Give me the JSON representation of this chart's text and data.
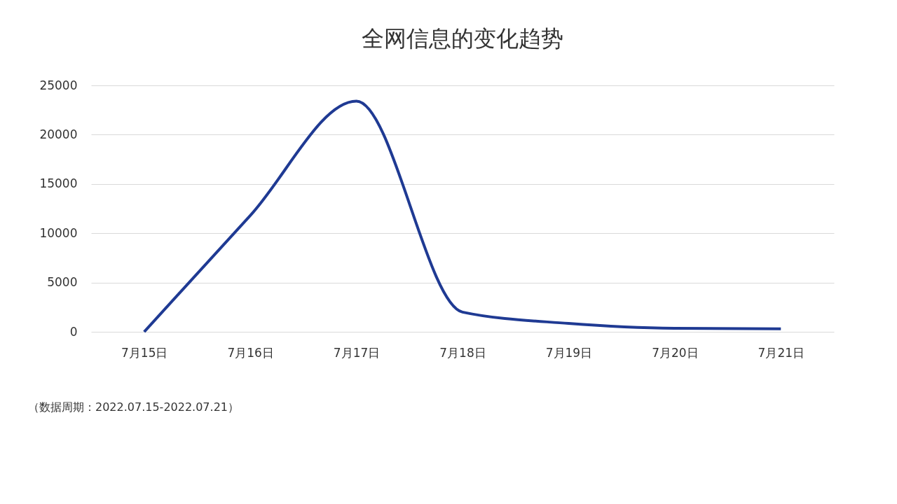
{
  "chart_data": {
    "type": "line",
    "title": "全网信息的变化趋势",
    "categories": [
      "7月15日",
      "7月16日",
      "7月17日",
      "7月18日",
      "7月19日",
      "7月20日",
      "7月21日"
    ],
    "series": [
      {
        "color": "#1f3a93",
        "values": [
          0,
          11800,
          23400,
          2000,
          850,
          350,
          300
        ]
      }
    ],
    "ylim": [
      0,
      25000
    ],
    "yticks": [
      0,
      5000,
      10000,
      15000,
      20000,
      25000
    ],
    "grid": "y",
    "legend": false,
    "marker": "none",
    "line_style": "solid",
    "annotations": [
      "（数据周期：2022.07.15-2022.07.21）"
    ]
  }
}
